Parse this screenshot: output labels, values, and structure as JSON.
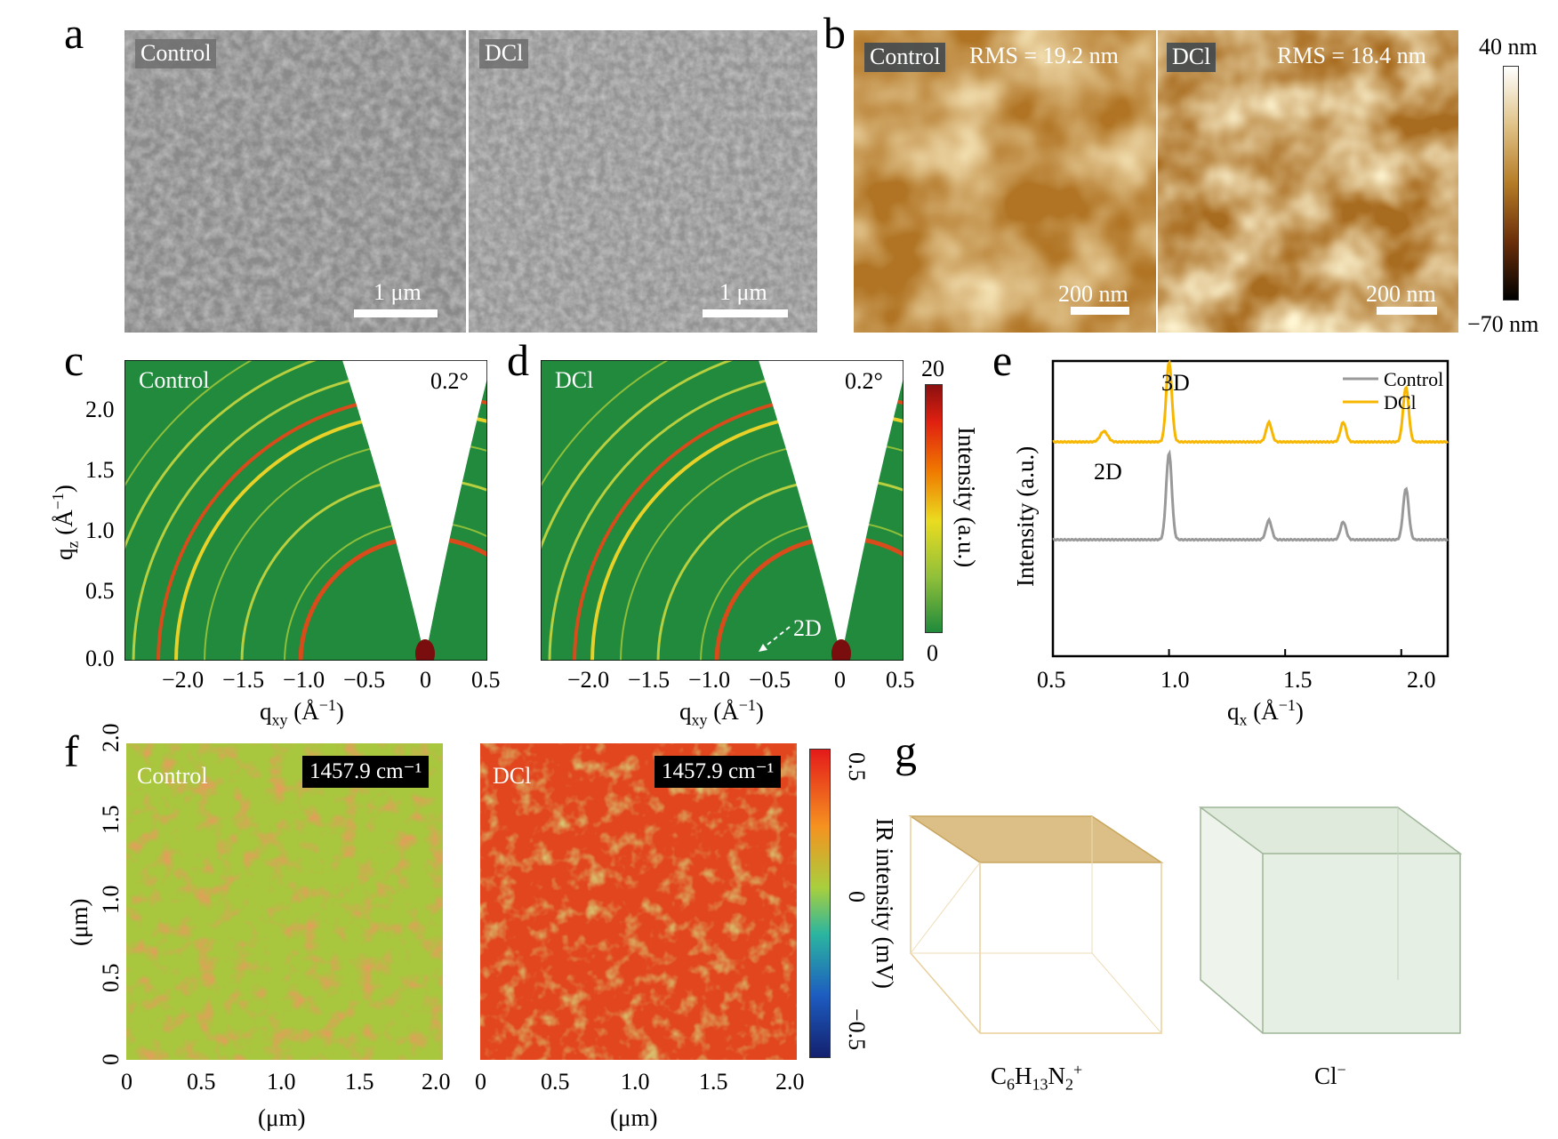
{
  "panels": {
    "a": {
      "label": "a",
      "left_tag": "Control",
      "right_tag": "DCl",
      "scale_left": "1 μm",
      "scale_right": "1 μm"
    },
    "b": {
      "label": "b",
      "left_tag": "Control",
      "right_tag": "DCl",
      "rms_left": "RMS = 19.2 nm",
      "rms_right": "RMS = 18.4 nm",
      "scale_left": "200 nm",
      "scale_right": "200 nm",
      "colorbar_max": "40 nm",
      "colorbar_min": "−70 nm"
    },
    "c": {
      "label": "c",
      "tag": "Control",
      "angle": "0.2°",
      "ylabel_main": "q",
      "ylabel_sub": "z",
      "ylabel_unit": " (Å",
      "ylabel_exp": "−1",
      "ylabel_close": ")",
      "yticks": [
        "2.0",
        "1.5",
        "1.0",
        "0.5",
        "0.0"
      ],
      "xticks": [
        "−2.0",
        "−1.5",
        "−1.0",
        "−0.5",
        "0",
        "0.5"
      ],
      "xlabel_main": "q",
      "xlabel_sub": "xy",
      "xlabel_unit": " (Å",
      "xlabel_exp": "−1",
      "xlabel_close": ")"
    },
    "d": {
      "label": "d",
      "tag": "DCl",
      "angle": "0.2°",
      "annotation": "2D",
      "xticks": [
        "−2.0",
        "−1.5",
        "−1.0",
        "−0.5",
        "0",
        "0.5"
      ],
      "xlabel_main": "q",
      "xlabel_sub": "xy",
      "xlabel_unit": " (Å",
      "xlabel_exp": "−1",
      "xlabel_close": ")",
      "colorbar_max": "20",
      "colorbar_min": "0",
      "colorbar_title": "Intensity (a.u.)"
    },
    "e": {
      "label": "e",
      "ylabel": "Intensity (a.u.)",
      "xlabel_main": "q",
      "xlabel_sub": "x",
      "xlabel_unit": " (Å",
      "xlabel_exp": "−1",
      "xlabel_close": ")",
      "peak_3d": "3D",
      "peak_2d": "2D",
      "xticks": [
        "0.5",
        "1.0",
        "1.5",
        "2.0"
      ]
    },
    "f": {
      "label": "f",
      "left_tag": "Control",
      "right_tag": "DCl",
      "wavenumber_left": "1457.9 cm⁻¹",
      "wavenumber_right": "1457.9 cm⁻¹",
      "yticks": [
        "2.0",
        "1.5",
        "1.0",
        "0.5",
        "0"
      ],
      "ylabel": "(μm)",
      "xticks_left": [
        "0",
        "0.5",
        "1.0",
        "1.5",
        "2.0"
      ],
      "xticks_right": [
        "0",
        "0.5",
        "1.0",
        "1.5",
        "2.0"
      ],
      "xlabel_left": "(μm)",
      "xlabel_right": "(μm)",
      "colorbar_ticks": [
        "0.5",
        "0",
        "−0.5"
      ],
      "colorbar_title": "IR intensity (mV)"
    },
    "g": {
      "label": "g",
      "left_ion_main": "C",
      "left_ion_s1": "6",
      "left_ion_h": "H",
      "left_ion_s2": "13",
      "left_ion_n": "N",
      "left_ion_s3": "2",
      "left_ion_sup": "+",
      "right_ion": "Cl",
      "right_ion_sup": "−"
    }
  },
  "colors": {
    "giwaxs_green": "#218a3c",
    "control_line": "#999999",
    "dcl_line": "#f7b600",
    "afm_mid": "#c8902e",
    "ir_green": "#a6c83c",
    "ir_red": "#e4431e"
  },
  "chart_data": {
    "type": "line",
    "xlim": [
      0.5,
      2.2
    ],
    "x_axis_label": "qx (Å−1)",
    "y_axis_label": "Intensity (a.u.)",
    "legend_position": "top-right",
    "series": [
      {
        "name": "Control",
        "peaks_at": [
          1.0,
          1.43,
          1.75,
          2.02
        ]
      },
      {
        "name": "DCl",
        "peaks_at": [
          0.72,
          1.0,
          1.43,
          1.75,
          2.02
        ]
      }
    ]
  }
}
